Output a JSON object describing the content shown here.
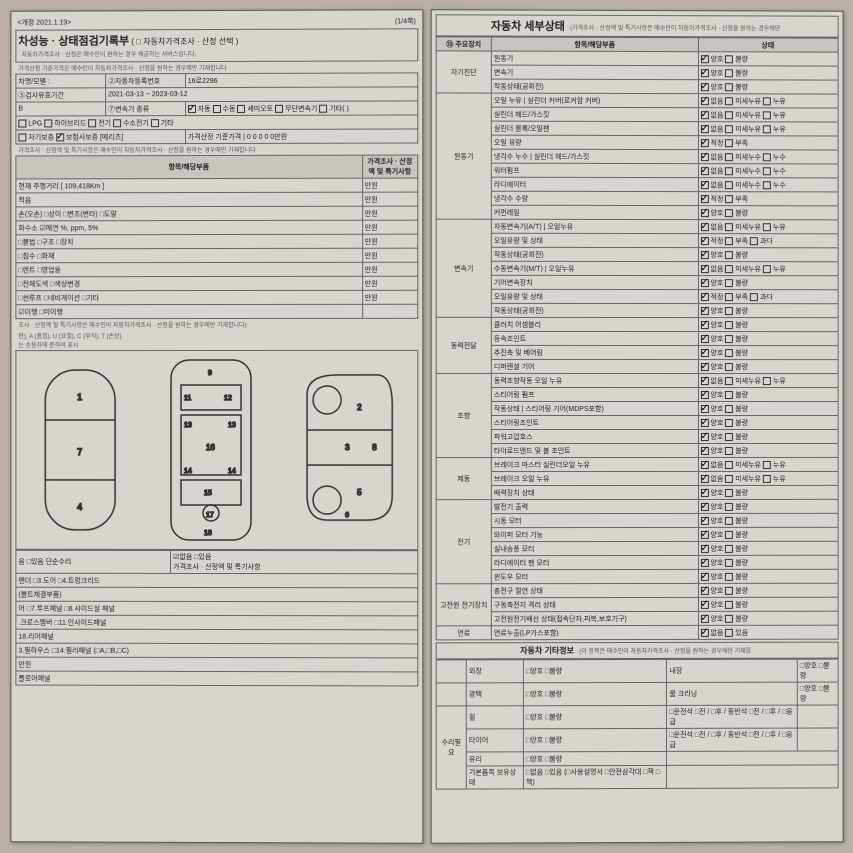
{
  "header": {
    "revision": "<개정 2021.1.19>",
    "page": "(1/4쪽)"
  },
  "left": {
    "title": "차성능 · 상태점검기록부",
    "titleSuffix": "( □ 자동차가격조사 · 산정 선택 )",
    "sub1": "자동차가격조사 · 산정은 매수인이 원하는 경우 제공하는 서비스입니다.",
    "sub2": "가격산정 기준가격은 매수인이 자동차가격조사 · 산정을 원하는 경우에만 기재합니다",
    "regLabel": "②자동차등록번호",
    "regNo": "16로2296",
    "modelLabel": "차명/모델 :",
    "validLabel": "⑤검사유효기간",
    "validValue": "2021-03-13 ~ 2023-03-12",
    "transLabel": "⑦변속기 종류",
    "transOpts": [
      "자동",
      "수동",
      "세미오토",
      "무단변속기",
      "기타( )"
    ],
    "fuelOpts": [
      "LPG",
      "하이브리드",
      "전기",
      "수소전기",
      "기타"
    ],
    "warrantyOpts": [
      "자기보증",
      "보험사보증"
    ],
    "warrantyProvider": "[메리츠]",
    "priceBaseLabel": "가격산정 기준가격",
    "priceBaseValue": "0 0 0 0 0만원",
    "note1": "가격조사 · 산정액 및 특기사항은 매수인이 자동차가격조사 · 산정을 원하는 경우에만 기재합니다",
    "cols": [
      "항목/해당부품",
      "가격조사 · 산정액 및 특기사항"
    ],
    "odometer": "현재 주행거리 [ 109,418Km ]",
    "rows": [
      {
        "l": "적음",
        "r": "만원"
      },
      {
        "l": "손(오손)  □상이  □변조(변타)  □도말",
        "r": "만원"
      },
      {
        "l": "화수소  ☑매연    %,    ppm,    5%",
        "r": "만원"
      },
      {
        "l": "□불법  □구조  □장치",
        "r": "만원"
      },
      {
        "l": "□침수  □화재",
        "r": "만원"
      },
      {
        "l": "□렌트  □영업용",
        "r": "만원"
      },
      {
        "l": "□전체도색  □색상변경",
        "r": "만원"
      },
      {
        "l": "□썬루프  □네비게이션  □기타",
        "r": "만원"
      },
      {
        "l": "☑이행  □미이행",
        "r": ""
      }
    ],
    "diagNote": "조사 · 산정액 및 특기사항은 매수인이 자동차가격조사 · 산정을 원하는 경우에만 기재합니다)",
    "diagLegend": "판), A (흠집), U (요철), C (부식), T (손상)\n는 승용차에 준하여 표시",
    "bottomOpts": "음 □있음      단순수리",
    "bottomOpts2": "☑없음 □있음\n가격조사 · 산정액 및 특기사항",
    "panels": [
      "팬더  □3.도어  □4.트렁크리드",
      "(볼트체결부품)",
      "어  □7.루프패널  □8.사이드실 패널",
      ".크로스멤버  □11.인사이드패널",
      "18.리어패널",
      "3.필하우스  □14.필러패널 (□A,□B,□C)",
      "만원",
      "플로어패널"
    ]
  },
  "right": {
    "title": "자동차 세부상태",
    "titleNote": "(가격조사 · 산정액 및 특기사항은 매수인이 자동차가격조사 · 산정을 원하는 경우에만",
    "sectionLabel": "⑬ 주요장치",
    "colItem": "항목/해당부품",
    "colStatus": "상태",
    "groups": [
      {
        "name": "자기진단",
        "items": [
          {
            "l": "원동기",
            "opts": [
              "양호",
              "불량"
            ],
            "chk": 0
          },
          {
            "l": "변속기",
            "opts": [
              "양호",
              "불량"
            ],
            "chk": 0
          },
          {
            "l": "작동상태(공회전)",
            "opts": [
              "양호",
              "불량"
            ],
            "chk": 0
          }
        ]
      },
      {
        "name": "원동기",
        "items": [
          {
            "l": "오일 누유 | 실린더 커버(로커암 커버)",
            "opts": [
              "없음",
              "미세누유",
              "누유"
            ],
            "chk": 0
          },
          {
            "l": "실린더 헤드/가스킷",
            "opts": [
              "없음",
              "미세누유",
              "누유"
            ],
            "chk": 0
          },
          {
            "l": "실린더 블록/오일팬",
            "opts": [
              "없음",
              "미세누유",
              "누유"
            ],
            "chk": 0
          },
          {
            "l": "오일 유량",
            "opts": [
              "적정",
              "부족"
            ],
            "chk": 0
          },
          {
            "l": "냉각수 누수 | 실린더 헤드/가스킷",
            "opts": [
              "없음",
              "미세누수",
              "누수"
            ],
            "chk": 0
          },
          {
            "l": "워터펌프",
            "opts": [
              "없음",
              "미세누수",
              "누수"
            ],
            "chk": 0
          },
          {
            "l": "라디에이터",
            "opts": [
              "없음",
              "미세누수",
              "누수"
            ],
            "chk": 0
          },
          {
            "l": "냉각수 수량",
            "opts": [
              "적정",
              "부족"
            ],
            "chk": 0
          },
          {
            "l": "커먼레일",
            "opts": [
              "양호",
              "불량"
            ],
            "chk": 0
          }
        ]
      },
      {
        "name": "변속기",
        "items": [
          {
            "l": "자동변속기(A/T) | 오일누유",
            "opts": [
              "없음",
              "미세누유",
              "누유"
            ],
            "chk": 0
          },
          {
            "l": "오일유량 및 상태",
            "opts": [
              "적정",
              "부족",
              "과다"
            ],
            "chk": 0
          },
          {
            "l": "작동상태(공회전)",
            "opts": [
              "양호",
              "불량"
            ],
            "chk": 0
          },
          {
            "l": "수동변속기(M/T) | 오일누유",
            "opts": [
              "없음",
              "미세누유",
              "누유"
            ],
            "chk": 0
          },
          {
            "l": "기어변속장치",
            "opts": [
              "양호",
              "불량"
            ],
            "chk": 0
          },
          {
            "l": "오일유량 및 상태",
            "opts": [
              "적정",
              "부족",
              "과다"
            ],
            "chk": 0
          },
          {
            "l": "작동상태(공회전)",
            "opts": [
              "양호",
              "불량"
            ],
            "chk": 0
          }
        ]
      },
      {
        "name": "동력전달",
        "items": [
          {
            "l": "클러치 어셈블리",
            "opts": [
              "양호",
              "불량"
            ],
            "chk": 0
          },
          {
            "l": "등속조인트",
            "opts": [
              "양호",
              "불량"
            ],
            "chk": 0
          },
          {
            "l": "추진축 및 베어링",
            "opts": [
              "양호",
              "불량"
            ],
            "chk": 0
          },
          {
            "l": "디퍼렌셜 기어",
            "opts": [
              "양호",
              "불량"
            ],
            "chk": 0
          }
        ]
      },
      {
        "name": "조향",
        "items": [
          {
            "l": "동력조향작동 오일 누유",
            "opts": [
              "없음",
              "미세누유",
              "누유"
            ],
            "chk": 0
          },
          {
            "l": "스티어링 펌프",
            "opts": [
              "양호",
              "불량"
            ],
            "chk": 0
          },
          {
            "l": "작동상태 | 스티어링 기어(MDPS포함)",
            "opts": [
              "양호",
              "불량"
            ],
            "chk": 0
          },
          {
            "l": "스티어링조인트",
            "opts": [
              "양호",
              "불량"
            ],
            "chk": 0
          },
          {
            "l": "파워고압호스",
            "opts": [
              "양호",
              "불량"
            ],
            "chk": 0
          },
          {
            "l": "타이로드엔드 및 볼 조인트",
            "opts": [
              "양호",
              "불량"
            ],
            "chk": 0
          }
        ]
      },
      {
        "name": "제동",
        "items": [
          {
            "l": "브레이크 마스터 실린더오일 누유",
            "opts": [
              "없음",
              "미세누유",
              "누유"
            ],
            "chk": 0
          },
          {
            "l": "브레이크 오일 누유",
            "opts": [
              "없음",
              "미세누유",
              "누유"
            ],
            "chk": 0
          },
          {
            "l": "배력장치 상태",
            "opts": [
              "양호",
              "불량"
            ],
            "chk": 0
          }
        ]
      },
      {
        "name": "전기",
        "items": [
          {
            "l": "발전기 출력",
            "opts": [
              "양호",
              "불량"
            ],
            "chk": 0
          },
          {
            "l": "시동 모터",
            "opts": [
              "양호",
              "불량"
            ],
            "chk": 0
          },
          {
            "l": "와이퍼 모터 기능",
            "opts": [
              "양호",
              "불량"
            ],
            "chk": 0
          },
          {
            "l": "실내송풍 모터",
            "opts": [
              "양호",
              "불량"
            ],
            "chk": 0
          },
          {
            "l": "라디에이터 팬 모터",
            "opts": [
              "양호",
              "불량"
            ],
            "chk": 0
          },
          {
            "l": "윈도우 모터",
            "opts": [
              "양호",
              "불량"
            ],
            "chk": 0
          }
        ]
      },
      {
        "name": "고전원 전기장치",
        "items": [
          {
            "l": "충전구 절연 상태",
            "opts": [
              "양호",
              "불량"
            ],
            "chk": 0
          },
          {
            "l": "구동축전지 격리 상태",
            "opts": [
              "양호",
              "불량"
            ],
            "chk": 0
          },
          {
            "l": "고전원전기배선 상태(접속단자,피복,보호기구)",
            "opts": [
              "양호",
              "불량"
            ],
            "chk": 0
          }
        ]
      },
      {
        "name": "연료",
        "items": [
          {
            "l": "연료누출(LP가스포함)",
            "opts": [
              "없음",
              "있음"
            ],
            "chk": 0
          }
        ]
      }
    ],
    "extraTitle": "자동차 기타정보",
    "extraNote": "(이 항목은 매수인이 자동차가격조사 · 산정을 원하는 경우에만 기재함",
    "extra": [
      {
        "l": "외장",
        "o": "□양호 □불량",
        "l2": "내장",
        "o2": "□양호 □불량"
      },
      {
        "l": "광택",
        "o": "□양호 □불량",
        "l2": "룸 크리닝",
        "o2": "□양호 □불량"
      },
      {
        "l": "휠",
        "o": "□양호 □불량",
        "l2": "□운전석 □전 / □후 / 동반석 □전 / □후 / □응급"
      },
      {
        "l": "타이어",
        "o": "□양호 □불량",
        "l2": "□운전석 □전 / □후 / 동반석 □전 / □후 / □응급"
      },
      {
        "l": "유리",
        "o": "□양호 □불량"
      },
      {
        "l": "기본품목 보유상태",
        "o": "□없음 □있음 (□사용설명서 □안전삼각대 □잭 □책)"
      }
    ],
    "extraRowLabel": "수리필요"
  }
}
